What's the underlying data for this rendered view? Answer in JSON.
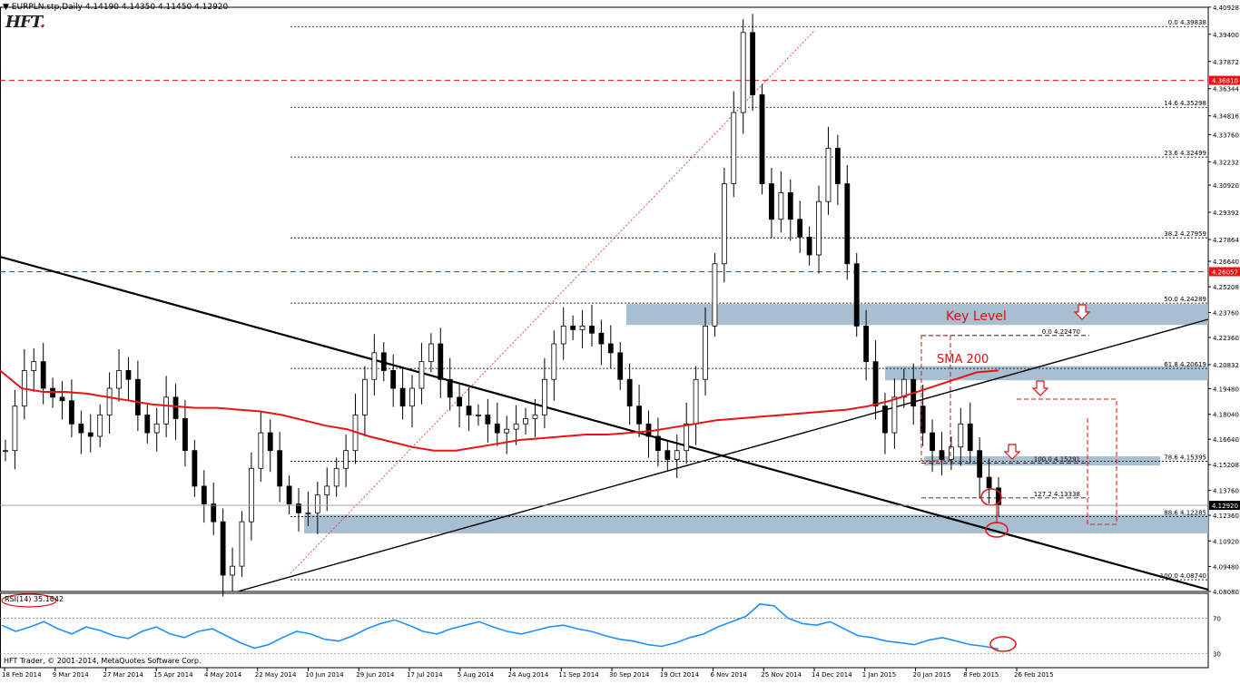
{
  "header": {
    "symbol": "EURPLN.stp,Daily",
    "ohlc": "4.14190 4.14350 4.11450 4.12920"
  },
  "logo": {
    "text": "HFT",
    "dot": "."
  },
  "copyright": "HFT Trader, © 2001-2014, MetaQuotes Software Corp.",
  "rsi": {
    "label": "RSI(14) 35.1642",
    "levels": [
      "70",
      "30"
    ]
  },
  "colors": {
    "sma": "#ee1111",
    "zone": "#9fb8cc",
    "fib": "#000000",
    "marker": "#dd0000",
    "rsi": "#1e90ff"
  },
  "chart_data": {
    "type": "candlestick",
    "symbol": "EURPLN.stp",
    "timeframe": "Daily",
    "ylim": [
      4.0808,
      4.4092
    ],
    "y_ticks": [
      "4.40928",
      "4.39400",
      "4.37872",
      "4.36344",
      "4.34816",
      "4.33760",
      "4.32232",
      "4.30920",
      "4.29392",
      "4.27864",
      "4.26640",
      "4.25208",
      "4.23760",
      "4.22360",
      "4.20832",
      "4.19480",
      "4.18040",
      "4.16640",
      "4.15208",
      "4.13760",
      "4.12360",
      "4.10920",
      "4.09480",
      "4.08080"
    ],
    "x_labels": [
      "18 Feb 2014",
      "9 Mar 2014",
      "27 Mar 2014",
      "15 Apr 2014",
      "4 May 2014",
      "22 May 2014",
      "10 Jun 2014",
      "29 Jun 2014",
      "17 Jul 2014",
      "5 Aug 2014",
      "24 Aug 2014",
      "11 Sep 2014",
      "30 Sep 2014",
      "19 Oct 2014",
      "6 Nov 2014",
      "25 Nov 2014",
      "14 Dec 2014",
      "1 Jan 2015",
      "20 Jan 2015",
      "8 Feb 2015",
      "26 Feb 2015"
    ],
    "price_series": [
      4.16,
      4.185,
      4.205,
      4.21,
      4.195,
      4.19,
      4.188,
      4.175,
      4.17,
      4.168,
      4.18,
      4.195,
      4.205,
      4.2,
      4.18,
      4.17,
      4.175,
      4.19,
      4.178,
      4.16,
      4.14,
      4.13,
      4.12,
      4.09,
      4.095,
      4.12,
      4.15,
      4.17,
      4.16,
      4.14,
      4.13,
      4.125,
      4.125,
      4.135,
      4.14,
      4.15,
      4.16,
      4.18,
      4.2,
      4.215,
      4.205,
      4.195,
      4.185,
      4.195,
      4.21,
      4.22,
      4.2,
      4.19,
      4.185,
      4.18,
      4.18,
      4.175,
      4.17,
      4.172,
      4.175,
      4.178,
      4.18,
      4.2,
      4.22,
      4.23,
      4.228,
      4.23,
      4.226,
      4.22,
      4.215,
      4.2,
      4.185,
      4.175,
      4.168,
      4.16,
      4.155,
      4.16,
      4.175,
      4.2,
      4.23,
      4.265,
      4.31,
      4.35,
      4.395,
      4.36,
      4.31,
      4.29,
      4.305,
      4.29,
      4.28,
      4.27,
      4.3,
      4.33,
      4.31,
      4.265,
      4.23,
      4.21,
      4.185,
      4.17,
      4.19,
      4.2,
      4.185,
      4.17,
      4.16,
      4.155,
      4.162,
      4.175,
      4.16,
      4.145,
      4.139,
      4.1292
    ],
    "sma_200": [
      4.205,
      4.195,
      4.193,
      4.193,
      4.192,
      4.19,
      4.188,
      4.186,
      4.185,
      4.184,
      4.184,
      4.183,
      4.182,
      4.18,
      4.177,
      4.174,
      4.172,
      4.168,
      4.165,
      4.162,
      4.16,
      4.16,
      4.162,
      4.164,
      4.166,
      4.167,
      4.168,
      4.169,
      4.169,
      4.17,
      4.171,
      4.173,
      4.175,
      4.177,
      4.178,
      4.179,
      4.18,
      4.181,
      4.182,
      4.183,
      4.185,
      4.188,
      4.192,
      4.196,
      4.2,
      4.204,
      4.205
    ],
    "horizontal_levels": [
      {
        "label": "4.36810",
        "value": 4.3681,
        "style": "red-dashed"
      },
      {
        "label": "4.26057",
        "value": 4.26057,
        "style": "red-dashed"
      }
    ],
    "fibonacci": [
      {
        "ratio": "0.0",
        "value": "4.39838"
      },
      {
        "ratio": "14.6",
        "value": "4.35298"
      },
      {
        "ratio": "23.6",
        "value": "4.32499"
      },
      {
        "ratio": "38.2",
        "value": "4.27959"
      },
      {
        "ratio": "50.0",
        "value": "4.24289"
      },
      {
        "ratio": "61.8",
        "value": "4.20619"
      },
      {
        "ratio": "78.6",
        "value": "4.15395"
      },
      {
        "ratio": "88.6",
        "value": "4.12285"
      },
      {
        "ratio": "100.0",
        "value": "4.08740"
      }
    ],
    "fib_extension": [
      {
        "ratio": "0.0",
        "value": "4.22470"
      },
      {
        "ratio": "100.0",
        "value": "4.15291"
      },
      {
        "ratio": "127.2",
        "value": "4.13338"
      }
    ],
    "zones": [
      {
        "name": "upper",
        "from": 4.2306,
        "to": 4.2424
      },
      {
        "name": "middle",
        "from": 4.1995,
        "to": 4.2075
      },
      {
        "name": "lower-right",
        "from": 4.1516,
        "to": 4.1568
      },
      {
        "name": "bottom",
        "from": 4.1135,
        "to": 4.124
      }
    ],
    "current_price": "4.12920",
    "annotations": [
      "Key Level",
      "SMA 200"
    ],
    "rsi_series": [
      62,
      55,
      60,
      66,
      58,
      52,
      60,
      56,
      50,
      47,
      55,
      60,
      52,
      48,
      55,
      58,
      50,
      42,
      36,
      40,
      48,
      55,
      52,
      46,
      44,
      50,
      58,
      64,
      68,
      62,
      55,
      52,
      58,
      62,
      66,
      60,
      55,
      52,
      56,
      60,
      62,
      58,
      55,
      50,
      46,
      44,
      40,
      38,
      42,
      48,
      52,
      60,
      66,
      72,
      86,
      84,
      70,
      64,
      62,
      66,
      58,
      50,
      48,
      44,
      42,
      40,
      45,
      48,
      44,
      40,
      38,
      35
    ]
  }
}
